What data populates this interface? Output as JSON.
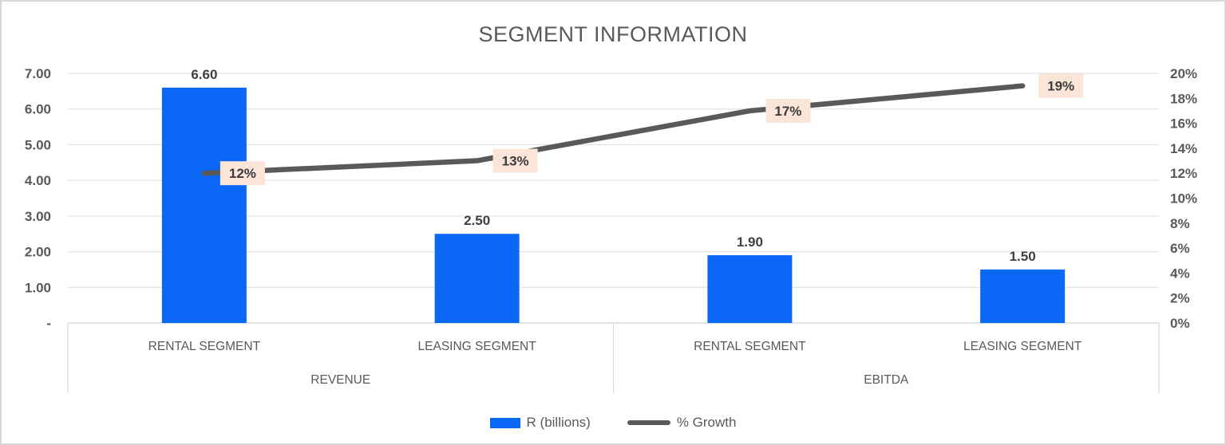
{
  "chart_data": {
    "type": "bar-line-combo",
    "title": "SEGMENT INFORMATION",
    "categories": [
      "RENTAL SEGMENT",
      "LEASING SEGMENT",
      "RENTAL SEGMENT",
      "LEASING SEGMENT"
    ],
    "groups": [
      {
        "label": "REVENUE",
        "span": 2
      },
      {
        "label": "EBITDA",
        "span": 2
      }
    ],
    "series": [
      {
        "name": "R (billions)",
        "type": "bar",
        "axis": "left",
        "values": [
          6.6,
          2.5,
          1.9,
          1.5
        ],
        "labels": [
          "6.60",
          "2.50",
          "1.90",
          "1.50"
        ]
      },
      {
        "name": "% Growth",
        "type": "line",
        "axis": "right",
        "values": [
          12,
          13,
          17,
          19
        ],
        "labels": [
          "12%",
          "13%",
          "17%",
          "19%"
        ]
      }
    ],
    "left_axis": {
      "ticks": [
        "7.00",
        "6.00",
        "5.00",
        "4.00",
        "3.00",
        "2.00",
        "1.00",
        "-"
      ],
      "range": [
        0,
        7
      ]
    },
    "right_axis": {
      "ticks": [
        "20%",
        "18%",
        "16%",
        "14%",
        "12%",
        "10%",
        "8%",
        "6%",
        "4%",
        "2%",
        "0%"
      ],
      "range": [
        0,
        20
      ]
    },
    "gridlines": true,
    "legend_position": "bottom",
    "colors": {
      "bar": "#0b67f5",
      "line": "#595959",
      "label_bg": "#fbe5d9",
      "grid": "#dcdcdc",
      "axis_line": "#d9d9d9",
      "tick_text": "#595959",
      "value_text": "#404040"
    }
  },
  "legend": {
    "items": [
      {
        "label": "R (billions)"
      },
      {
        "label": "% Growth"
      }
    ]
  }
}
